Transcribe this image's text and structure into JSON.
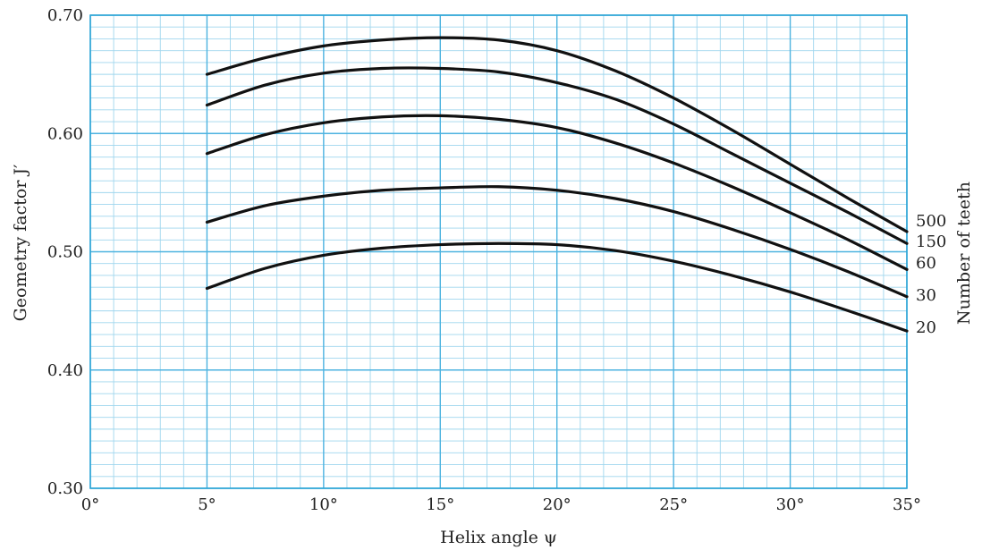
{
  "chart_data": {
    "type": "line",
    "title": "",
    "xlabel": "Helix angle ψ",
    "ylabel": "Geometry factor J′",
    "right_label": "Number of teeth",
    "xlim": [
      0,
      35
    ],
    "ylim": [
      0.3,
      0.7
    ],
    "grid": true,
    "x_ticks": [
      {
        "value": 0,
        "label": "0°"
      },
      {
        "value": 5,
        "label": "5°"
      },
      {
        "value": 10,
        "label": "10°"
      },
      {
        "value": 15,
        "label": "15°"
      },
      {
        "value": 20,
        "label": "20°"
      },
      {
        "value": 25,
        "label": "25°"
      },
      {
        "value": 30,
        "label": "30°"
      },
      {
        "value": 35,
        "label": "35°"
      }
    ],
    "y_ticks": [
      {
        "value": 0.3,
        "label": "0.30"
      },
      {
        "value": 0.4,
        "label": "0.40"
      },
      {
        "value": 0.5,
        "label": "0.50"
      },
      {
        "value": 0.6,
        "label": "0.60"
      },
      {
        "value": 0.7,
        "label": "0.70"
      }
    ],
    "x": [
      5,
      7.5,
      10,
      12.5,
      15,
      17.5,
      20,
      22.5,
      25,
      27.5,
      30,
      32.5,
      35
    ],
    "series": [
      {
        "name": "500",
        "values": [
          0.65,
          0.664,
          0.674,
          0.679,
          0.681,
          0.679,
          0.67,
          0.653,
          0.63,
          0.603,
          0.574,
          0.545,
          0.517
        ]
      },
      {
        "name": "150",
        "values": [
          0.624,
          0.641,
          0.651,
          0.655,
          0.655,
          0.652,
          0.643,
          0.629,
          0.608,
          0.583,
          0.558,
          0.533,
          0.507
        ]
      },
      {
        "name": "60",
        "values": [
          0.583,
          0.599,
          0.609,
          0.614,
          0.615,
          0.612,
          0.605,
          0.592,
          0.575,
          0.555,
          0.533,
          0.51,
          0.485
        ]
      },
      {
        "name": "30",
        "values": [
          0.525,
          0.539,
          0.547,
          0.552,
          0.554,
          0.555,
          0.552,
          0.545,
          0.534,
          0.519,
          0.502,
          0.483,
          0.462
        ]
      },
      {
        "name": "20",
        "values": [
          0.469,
          0.486,
          0.497,
          0.503,
          0.506,
          0.507,
          0.506,
          0.501,
          0.492,
          0.48,
          0.466,
          0.45,
          0.433
        ]
      }
    ]
  }
}
